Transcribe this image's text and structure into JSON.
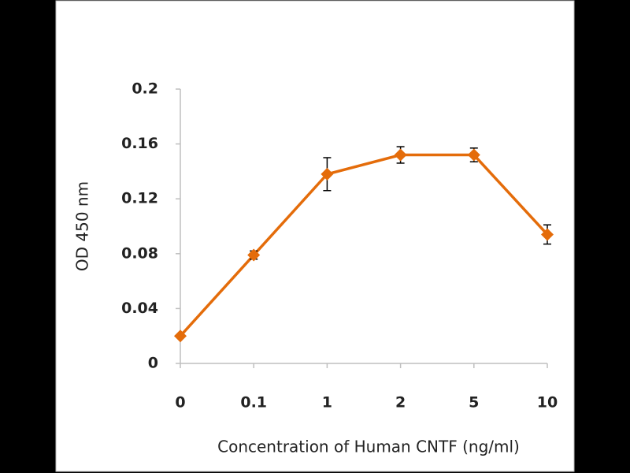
{
  "chart_data": {
    "type": "line",
    "x_label": "Concentration of Human CNTF (ng/ml)",
    "y_label": "OD 450 nm",
    "categories": [
      "0",
      "0.1",
      "1",
      "2",
      "5",
      "10"
    ],
    "series": [
      {
        "name": "OD 450 nm",
        "color": "#e46c0a",
        "values": [
          0.02,
          0.079,
          0.138,
          0.152,
          0.152,
          0.094
        ],
        "errors": [
          0.001,
          0.003,
          0.012,
          0.006,
          0.005,
          0.007
        ]
      }
    ],
    "ylim": [
      0,
      0.2
    ],
    "yticks": [
      0,
      0.04,
      0.08,
      0.12,
      0.16,
      0.2
    ]
  }
}
